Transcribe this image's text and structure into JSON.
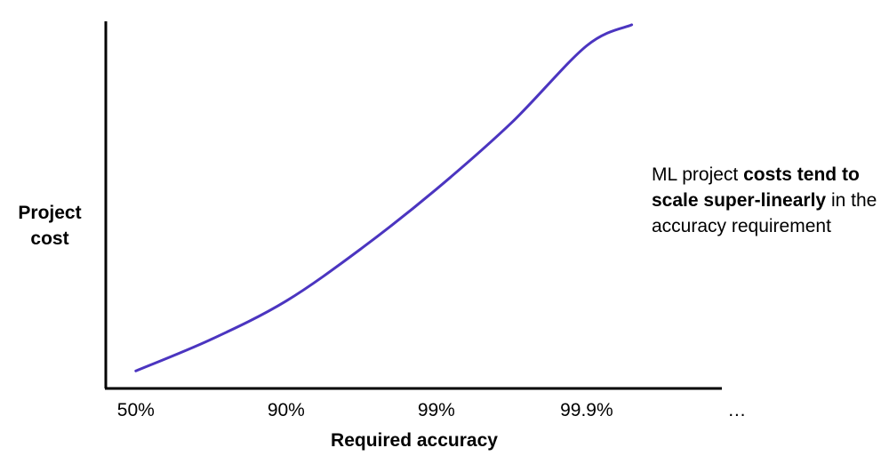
{
  "chart_data": {
    "type": "line",
    "title": "",
    "xlabel": "Required accuracy",
    "ylabel_lines": [
      "Project",
      "cost"
    ],
    "categories": [
      "50%",
      "90%",
      "99%",
      "99.9%",
      "…"
    ],
    "series": [
      {
        "color": "#4b35c0",
        "x": [
          0,
          0.5,
          1,
          1.5,
          2,
          2.5,
          3,
          3.3
        ],
        "y": [
          0.05,
          0.14,
          0.25,
          0.4,
          0.57,
          0.76,
          0.98,
          1.04
        ]
      }
    ],
    "xlim": [
      -0.2,
      3.9
    ],
    "ylim": [
      0,
      1.05
    ],
    "y_ticks_shown": false,
    "grid": false,
    "legend": "none",
    "annotation": {
      "before": "ML project ",
      "bold": "costs tend to scale super-linearly",
      "after": " in the accuracy requirement"
    }
  }
}
